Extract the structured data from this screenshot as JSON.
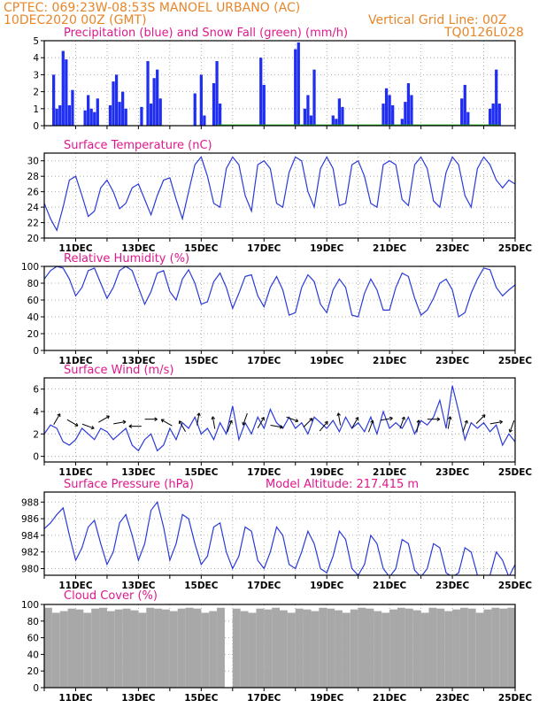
{
  "header": {
    "line1": "CPTEC:   069:23W-08:53S   MANOEL URBANO (AC)",
    "line2": "10DEC2020 00Z (GMT)",
    "grid_note": "Vertical Grid Line: 00Z",
    "code": "TQ0126L028"
  },
  "colors": {
    "header": "#e8862a",
    "panel_title": "#e0188c",
    "precip": "#1f2ef0",
    "snow": "#20b020",
    "series_line": "#2a3ad8",
    "cloud": "#a8a8a8",
    "arrow": "#000000"
  },
  "x_axis_labels": [
    "11DEC",
    "13DEC",
    "15DEC",
    "17DEC",
    "19DEC",
    "21DEC",
    "23DEC",
    "25DEC"
  ],
  "chart_data": [
    {
      "id": "precip",
      "type": "bar",
      "title": "Precipitation (blue) and Snow Fall (green) (mm/h)",
      "ylim": [
        0,
        5
      ],
      "yticks": [
        0,
        1,
        2,
        3,
        4,
        5
      ],
      "x_unit": "days since 10DEC2020 00Z",
      "grid": "dotted",
      "series": [
        {
          "name": "Precipitation",
          "x": [
            0.3,
            0.4,
            0.5,
            0.6,
            0.7,
            0.8,
            0.9,
            1.3,
            1.4,
            1.5,
            1.6,
            1.7,
            2.1,
            2.2,
            2.3,
            2.4,
            2.5,
            2.6,
            3.1,
            3.3,
            3.4,
            3.5,
            3.6,
            3.7,
            4.8,
            5.0,
            5.1,
            5.4,
            5.5,
            5.6,
            6.9,
            7.0,
            8.0,
            8.1,
            8.3,
            8.4,
            8.5,
            8.6,
            9.2,
            9.3,
            9.4,
            9.5,
            10.8,
            10.9,
            11.0,
            11.1,
            11.4,
            11.5,
            11.6,
            11.7,
            13.3,
            13.4,
            13.5,
            14.2,
            14.3,
            14.4,
            14.5
          ],
          "values": [
            3.0,
            1.0,
            1.2,
            4.4,
            3.9,
            1.2,
            2.1,
            0.9,
            1.8,
            1.0,
            0.8,
            1.6,
            1.2,
            2.6,
            3.0,
            1.4,
            2.0,
            1.0,
            1.1,
            3.8,
            1.3,
            2.8,
            3.3,
            1.6,
            1.9,
            3.0,
            0.6,
            2.5,
            3.8,
            1.3,
            4.0,
            2.4,
            4.5,
            4.9,
            1.0,
            1.8,
            0.6,
            3.3,
            0.6,
            0.4,
            1.6,
            1.1,
            1.3,
            2.2,
            1.8,
            1.2,
            0.4,
            1.4,
            2.5,
            1.8,
            1.6,
            2.4,
            0.8,
            1.0,
            1.3,
            3.3,
            1.3
          ]
        },
        {
          "name": "Snow Fall",
          "x": [
            5.5,
            14.5
          ],
          "values": [
            0.0,
            0.0
          ]
        }
      ]
    },
    {
      "id": "temp",
      "type": "line",
      "title": "Surface Temperature (nC)",
      "ylim": [
        20,
        31
      ],
      "yticks": [
        20,
        22,
        24,
        26,
        28,
        30
      ],
      "x_unit": "days since 10DEC2020 00Z",
      "grid": "dotted",
      "series": [
        {
          "name": "Temperature",
          "x": [
            0,
            0.2,
            0.4,
            0.6,
            0.8,
            1.0,
            1.2,
            1.4,
            1.6,
            1.8,
            2.0,
            2.2,
            2.4,
            2.6,
            2.8,
            3.0,
            3.2,
            3.4,
            3.6,
            3.8,
            4.0,
            4.2,
            4.4,
            4.6,
            4.8,
            5.0,
            5.2,
            5.4,
            5.6,
            5.8,
            6.0,
            6.2,
            6.4,
            6.6,
            6.8,
            7.0,
            7.2,
            7.4,
            7.6,
            7.8,
            8.0,
            8.2,
            8.4,
            8.6,
            8.8,
            9.0,
            9.2,
            9.4,
            9.6,
            9.8,
            10.0,
            10.2,
            10.4,
            10.6,
            10.8,
            11.0,
            11.2,
            11.4,
            11.6,
            11.8,
            12.0,
            12.2,
            12.4,
            12.6,
            12.8,
            13.0,
            13.2,
            13.4,
            13.6,
            13.8,
            14.0,
            14.2,
            14.4,
            14.6,
            14.8,
            15.0
          ],
          "values": [
            24.5,
            22.5,
            21.0,
            24.0,
            27.5,
            28.0,
            25.5,
            22.8,
            23.5,
            26.5,
            27.5,
            26.0,
            23.8,
            24.5,
            26.5,
            27.0,
            25.0,
            23.0,
            25.5,
            27.5,
            27.8,
            25.0,
            22.5,
            26.0,
            29.5,
            30.5,
            28.0,
            24.5,
            24.0,
            29.0,
            30.5,
            29.5,
            25.5,
            23.5,
            29.5,
            30.0,
            29.0,
            24.5,
            24.0,
            28.5,
            30.5,
            30.0,
            26.0,
            24.0,
            29.0,
            30.5,
            29.0,
            24.2,
            24.5,
            29.5,
            30.0,
            28.0,
            24.5,
            24.0,
            29.5,
            30.0,
            29.5,
            25.0,
            24.2,
            29.5,
            30.5,
            29.0,
            24.8,
            24.0,
            28.5,
            30.5,
            29.5,
            25.5,
            24.0,
            29.0,
            30.5,
            29.5,
            27.5,
            26.5,
            27.5,
            27.0
          ]
        }
      ]
    },
    {
      "id": "rh",
      "type": "line",
      "title": "Relative Humidity (%)",
      "ylim": [
        0,
        100
      ],
      "yticks": [
        0,
        20,
        40,
        60,
        80,
        100
      ],
      "x_unit": "days since 10DEC2020 00Z",
      "grid": "dotted",
      "series": [
        {
          "name": "Relative Humidity",
          "x": [
            0,
            0.2,
            0.4,
            0.6,
            0.8,
            1.0,
            1.2,
            1.4,
            1.6,
            1.8,
            2.0,
            2.2,
            2.4,
            2.6,
            2.8,
            3.0,
            3.2,
            3.4,
            3.6,
            3.8,
            4.0,
            4.2,
            4.4,
            4.6,
            4.8,
            5.0,
            5.2,
            5.4,
            5.6,
            5.8,
            6.0,
            6.2,
            6.4,
            6.6,
            6.8,
            7.0,
            7.2,
            7.4,
            7.6,
            7.8,
            8.0,
            8.2,
            8.4,
            8.6,
            8.8,
            9.0,
            9.2,
            9.4,
            9.6,
            9.8,
            10.0,
            10.2,
            10.4,
            10.6,
            10.8,
            11.0,
            11.2,
            11.4,
            11.6,
            11.8,
            12.0,
            12.2,
            12.4,
            12.6,
            12.8,
            13.0,
            13.2,
            13.4,
            13.6,
            13.8,
            14.0,
            14.2,
            14.4,
            14.6,
            14.8,
            15.0
          ],
          "values": [
            85,
            95,
            100,
            98,
            85,
            65,
            75,
            95,
            98,
            80,
            62,
            75,
            95,
            100,
            95,
            75,
            55,
            70,
            92,
            95,
            70,
            60,
            85,
            96,
            80,
            55,
            58,
            82,
            92,
            75,
            50,
            68,
            88,
            90,
            65,
            52,
            75,
            88,
            72,
            42,
            45,
            75,
            90,
            82,
            55,
            45,
            72,
            85,
            75,
            42,
            40,
            68,
            85,
            72,
            48,
            48,
            75,
            92,
            88,
            62,
            42,
            48,
            62,
            80,
            85,
            72,
            40,
            45,
            68,
            85,
            98,
            96,
            75,
            65,
            72,
            78
          ]
        }
      ]
    },
    {
      "id": "wind",
      "type": "line",
      "title": "Surface Wind (m/s)",
      "ylim": [
        -0.5,
        7
      ],
      "yticks": [
        0,
        2,
        4,
        6
      ],
      "x_unit": "days since 10DEC2020 00Z",
      "grid": "dotted",
      "series": [
        {
          "name": "Wind speed",
          "x": [
            0,
            0.2,
            0.4,
            0.6,
            0.8,
            1.0,
            1.2,
            1.4,
            1.6,
            1.8,
            2.0,
            2.2,
            2.4,
            2.6,
            2.8,
            3.0,
            3.2,
            3.4,
            3.6,
            3.8,
            4.0,
            4.2,
            4.4,
            4.6,
            4.8,
            5.0,
            5.2,
            5.4,
            5.6,
            5.8,
            6.0,
            6.2,
            6.4,
            6.6,
            6.8,
            7.0,
            7.2,
            7.4,
            7.6,
            7.8,
            8.0,
            8.2,
            8.4,
            8.6,
            8.8,
            9.0,
            9.2,
            9.4,
            9.6,
            9.8,
            10.0,
            10.2,
            10.4,
            10.6,
            10.8,
            11.0,
            11.2,
            11.4,
            11.6,
            11.8,
            12.0,
            12.2,
            12.4,
            12.6,
            12.8,
            13.0,
            13.2,
            13.4,
            13.6,
            13.8,
            14.0,
            14.2,
            14.4,
            14.6,
            14.8,
            15.0
          ],
          "values": [
            2.0,
            2.8,
            2.5,
            1.3,
            1.0,
            1.5,
            2.5,
            2.0,
            1.5,
            2.5,
            2.2,
            1.5,
            2.0,
            2.5,
            1.0,
            0.5,
            1.5,
            2.0,
            0.5,
            1.0,
            2.5,
            1.5,
            3.0,
            2.5,
            3.5,
            2.0,
            2.5,
            1.5,
            3.0,
            2.0,
            4.5,
            1.5,
            3.0,
            2.0,
            3.5,
            2.5,
            4.2,
            3.0,
            2.5,
            3.5,
            2.5,
            3.0,
            2.0,
            3.5,
            3.0,
            2.5,
            3.2,
            2.2,
            3.5,
            2.5,
            3.0,
            2.2,
            3.5,
            2.0,
            4.0,
            2.5,
            3.0,
            2.5,
            3.5,
            2.0,
            3.2,
            2.8,
            3.5,
            5.0,
            2.5,
            6.3,
            4.0,
            1.5,
            3.0,
            2.5,
            3.0,
            2.2,
            2.8,
            1.0,
            2.0,
            1.3
          ]
        }
      ]
    },
    {
      "id": "pres",
      "type": "line",
      "title": "Surface Pressure (hPa)",
      "subtitle": "Model Altitude: 217.415 m",
      "ylim": [
        979.2,
        989.2
      ],
      "yticks": [
        980,
        982,
        984,
        986,
        988
      ],
      "x_unit": "days since 10DEC2020 00Z",
      "grid": "dotted",
      "series": [
        {
          "name": "Pressure",
          "x": [
            0,
            0.2,
            0.4,
            0.6,
            0.8,
            1.0,
            1.2,
            1.4,
            1.6,
            1.8,
            2.0,
            2.2,
            2.4,
            2.6,
            2.8,
            3.0,
            3.2,
            3.4,
            3.6,
            3.8,
            4.0,
            4.2,
            4.4,
            4.6,
            4.8,
            5.0,
            5.2,
            5.4,
            5.6,
            5.8,
            6.0,
            6.2,
            6.4,
            6.6,
            6.8,
            7.0,
            7.2,
            7.4,
            7.6,
            7.8,
            8.0,
            8.2,
            8.4,
            8.6,
            8.8,
            9.0,
            9.2,
            9.4,
            9.6,
            9.8,
            10.0,
            10.2,
            10.4,
            10.6,
            10.8,
            11.0,
            11.2,
            11.4,
            11.6,
            11.8,
            12.0,
            12.2,
            12.4,
            12.6,
            12.8,
            13.0,
            13.2,
            13.4,
            13.6,
            13.8,
            14.0,
            14.2,
            14.4,
            14.6,
            14.8,
            15.0
          ],
          "values": [
            984.8,
            985.5,
            986.5,
            987.3,
            984.0,
            981.0,
            982.5,
            985.0,
            985.8,
            983.0,
            980.5,
            982.0,
            985.5,
            986.5,
            984.0,
            981.0,
            983.0,
            987.0,
            988.0,
            985.0,
            981.0,
            983.0,
            986.5,
            986.0,
            983.0,
            980.5,
            981.5,
            985.0,
            985.5,
            982.0,
            980.0,
            981.5,
            985.0,
            984.5,
            981.0,
            980.0,
            982.0,
            985.0,
            984.0,
            980.5,
            980.0,
            982.0,
            984.5,
            983.0,
            980.0,
            979.5,
            981.5,
            984.5,
            983.5,
            980.0,
            979.2,
            980.5,
            984.0,
            983.0,
            980.0,
            979.0,
            980.0,
            983.5,
            983.0,
            979.8,
            979.0,
            980.0,
            983.0,
            982.5,
            979.5,
            979.0,
            979.5,
            982.5,
            982.0,
            979.2,
            979.0,
            979.2,
            982.0,
            981.0,
            979.0,
            980.5
          ]
        }
      ]
    },
    {
      "id": "cloud",
      "type": "bar",
      "title": "Cloud Cover (%)",
      "ylim": [
        0,
        100
      ],
      "yticks": [
        0,
        20,
        40,
        60,
        80,
        100
      ],
      "x_unit": "days since 10DEC2020 00Z",
      "grid": "dotted",
      "series": [
        {
          "name": "Cloud cover",
          "x": [
            0.0,
            0.25,
            0.5,
            0.75,
            1.0,
            1.25,
            1.5,
            1.75,
            2.0,
            2.25,
            2.5,
            2.75,
            3.0,
            3.25,
            3.5,
            3.75,
            4.0,
            4.25,
            4.5,
            4.75,
            5.0,
            5.25,
            5.5,
            5.75,
            6.0,
            6.25,
            6.5,
            6.75,
            7.0,
            7.25,
            7.5,
            7.75,
            8.0,
            8.25,
            8.5,
            8.75,
            9.0,
            9.25,
            9.5,
            9.75,
            10.0,
            10.25,
            10.5,
            10.75,
            11.0,
            11.25,
            11.5,
            11.75,
            12.0,
            12.25,
            12.5,
            12.75,
            13.0,
            13.25,
            13.5,
            13.75,
            14.0,
            14.25,
            14.5,
            14.75,
            15.0
          ],
          "values": [
            96,
            90,
            92,
            95,
            94,
            90,
            95,
            96,
            92,
            94,
            95,
            93,
            90,
            96,
            95,
            94,
            92,
            95,
            96,
            95,
            90,
            92,
            96,
            0,
            95,
            92,
            90,
            95,
            94,
            96,
            93,
            90,
            95,
            94,
            92,
            96,
            95,
            93,
            90,
            94,
            96,
            95,
            92,
            90,
            94,
            96,
            95,
            93,
            90,
            96,
            95,
            92,
            94,
            96,
            95,
            90,
            94,
            96,
            95,
            96,
            97
          ]
        }
      ]
    }
  ],
  "wind_arrows": {
    "x": [
      0.4,
      0.9,
      1.4,
      1.9,
      2.4,
      2.9,
      3.4,
      3.9,
      4.4,
      4.9,
      5.4,
      5.9,
      6.4,
      6.9,
      7.4,
      7.9,
      8.4,
      8.9,
      9.4,
      9.9,
      10.4,
      10.9,
      11.4,
      11.9,
      12.4,
      12.9,
      13.4,
      13.9,
      14.4,
      14.9
    ],
    "direction_deg": [
      30,
      120,
      110,
      60,
      80,
      270,
      90,
      300,
      330,
      10,
      350,
      20,
      200,
      30,
      100,
      110,
      45,
      40,
      350,
      30,
      20,
      80,
      20,
      10,
      90,
      10,
      20,
      45,
      80,
      200
    ]
  }
}
